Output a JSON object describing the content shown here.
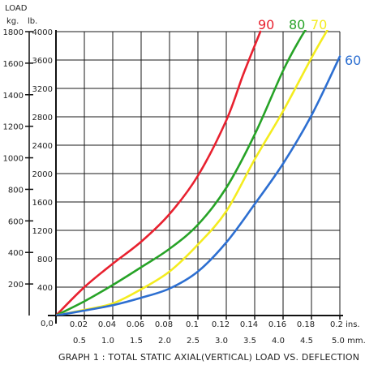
{
  "chart_data": {
    "type": "line",
    "title": "GRAPH 1 : TOTAL STATIC AXIAL(VERTICAL) LOAD VS. DEFLECTION",
    "ylabel": "LOAD",
    "y_units_primary": "kg.",
    "y_units_secondary": "lb.",
    "x_units_primary": "mm.",
    "x_units_secondary": "ins.",
    "ylim_kg": [
      0,
      1800
    ],
    "ylim_lb": [
      0,
      4000
    ],
    "xlim_mm": [
      0,
      5.0
    ],
    "xlim_in": [
      0,
      0.2
    ],
    "grid": true,
    "y_ticks_kg": [
      "200",
      "400",
      "600",
      "800",
      "1000",
      "1200",
      "1400",
      "1600",
      "1800"
    ],
    "y_ticks_lb": [
      "400",
      "800",
      "1200",
      "1600",
      "2000",
      "2400",
      "2800",
      "3200",
      "3600",
      "4000"
    ],
    "x_ticks_in": [
      "0.02",
      "0.04",
      "0.06",
      "0.08",
      "0.1",
      "0.12",
      "0.14",
      "0.16",
      "0.18",
      "0.2 ins."
    ],
    "x_ticks_mm": [
      "0.5",
      "1.0",
      "1.5",
      "2.0",
      "2.5",
      "3.0",
      "3.5",
      "4.0",
      "4.5",
      "5.0 mm."
    ],
    "origin_label": "0,0",
    "series": [
      {
        "name": "90",
        "color": "#e8212f",
        "x_mm": [
          0,
          0.5,
          1.0,
          1.5,
          2.0,
          2.5,
          3.0,
          3.3,
          3.6
        ],
        "y_lb": [
          0,
          400,
          730,
          1040,
          1430,
          1970,
          2750,
          3400,
          4000
        ]
      },
      {
        "name": "80",
        "color": "#27a327",
        "x_mm": [
          0,
          0.5,
          1.0,
          1.5,
          2.0,
          2.5,
          3.0,
          3.5,
          4.0,
          4.3,
          4.5
        ],
        "y_lb": [
          0,
          200,
          430,
          680,
          940,
          1280,
          1800,
          2550,
          3450,
          3900,
          4150
        ]
      },
      {
        "name": "70",
        "color": "#f4ec1f",
        "x_mm": [
          0,
          0.5,
          1.0,
          1.5,
          2.0,
          2.5,
          3.0,
          3.5,
          4.0,
          4.5,
          4.8
        ],
        "y_lb": [
          0,
          80,
          170,
          370,
          620,
          1000,
          1470,
          2200,
          2880,
          3630,
          4050
        ]
      },
      {
        "name": "60",
        "color": "#2d6fd1",
        "x_mm": [
          0,
          0.5,
          1.0,
          1.5,
          2.0,
          2.5,
          3.0,
          3.5,
          4.0,
          4.5,
          5.0
        ],
        "y_lb": [
          0,
          70,
          145,
          250,
          380,
          620,
          1030,
          1570,
          2140,
          2820,
          3650
        ]
      }
    ]
  }
}
